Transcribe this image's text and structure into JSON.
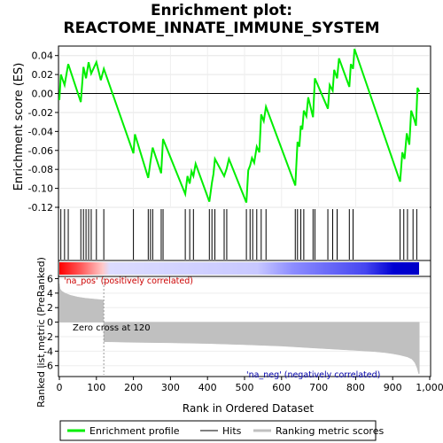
{
  "title_line1": "Enrichment plot:",
  "title_line2": "REACTOME_INNATE_IMMUNE_SYSTEM",
  "colors": {
    "es_line": "#00ee00",
    "hit": "#000000",
    "metric_fill": "#c0c0c0",
    "pos_label": "#cc0000",
    "neg_label": "#0000aa",
    "zero_line": "#888888"
  },
  "chart_data": [
    {
      "type": "line",
      "name": "enrichment-profile",
      "ylabel": "Enrichment score (ES)",
      "xlim": [
        0,
        1000
      ],
      "ylim": [
        -0.12,
        0.05
      ],
      "y_ticks": [
        {
          "v": 0.04,
          "label": "0.04"
        },
        {
          "v": 0.02,
          "label": "0.02"
        },
        {
          "v": 0.0,
          "label": "0.00"
        },
        {
          "v": -0.02,
          "label": "-0.02"
        },
        {
          "v": -0.04,
          "label": "-0.04"
        },
        {
          "v": -0.06,
          "label": "-0.06"
        },
        {
          "v": -0.08,
          "label": "-0.08"
        },
        {
          "v": -0.1,
          "label": "-0.10"
        },
        {
          "v": -0.12,
          "label": "-0.12"
        }
      ],
      "hits": [
        4,
        14,
        24,
        58,
        65,
        72,
        79,
        86,
        100,
        120,
        200,
        240,
        246,
        252,
        275,
        280,
        340,
        352,
        362,
        405,
        412,
        420,
        445,
        452,
        505,
        515,
        522,
        533,
        545,
        558,
        637,
        643,
        652,
        660,
        685,
        690,
        725,
        738,
        750,
        783,
        793,
        920,
        930,
        940,
        955,
        965
      ],
      "points": [
        [
          0,
          -0.007
        ],
        [
          4,
          0.02
        ],
        [
          14,
          0.009
        ],
        [
          24,
          0.031
        ],
        [
          58,
          -0.009
        ],
        [
          65,
          0.028
        ],
        [
          72,
          0.016
        ],
        [
          79,
          0.033
        ],
        [
          86,
          0.021
        ],
        [
          100,
          0.033
        ],
        [
          112,
          0.014
        ],
        [
          120,
          0.026
        ],
        [
          200,
          -0.063
        ],
        [
          204,
          -0.043
        ],
        [
          240,
          -0.089
        ],
        [
          246,
          -0.072
        ],
        [
          252,
          -0.057
        ],
        [
          275,
          -0.084
        ],
        [
          280,
          -0.048
        ],
        [
          340,
          -0.106
        ],
        [
          346,
          -0.087
        ],
        [
          352,
          -0.095
        ],
        [
          357,
          -0.082
        ],
        [
          362,
          -0.087
        ],
        [
          368,
          -0.074
        ],
        [
          405,
          -0.114
        ],
        [
          412,
          -0.094
        ],
        [
          416,
          -0.085
        ],
        [
          420,
          -0.069
        ],
        [
          445,
          -0.087
        ],
        [
          452,
          -0.079
        ],
        [
          458,
          -0.069
        ],
        [
          505,
          -0.115
        ],
        [
          510,
          -0.081
        ],
        [
          515,
          -0.076
        ],
        [
          520,
          -0.068
        ],
        [
          526,
          -0.073
        ],
        [
          533,
          -0.056
        ],
        [
          540,
          -0.062
        ],
        [
          545,
          -0.022
        ],
        [
          552,
          -0.029
        ],
        [
          558,
          -0.014
        ],
        [
          637,
          -0.097
        ],
        [
          643,
          -0.051
        ],
        [
          648,
          -0.056
        ],
        [
          652,
          -0.034
        ],
        [
          656,
          -0.038
        ],
        [
          660,
          -0.018
        ],
        [
          667,
          -0.024
        ],
        [
          672,
          -0.004
        ],
        [
          685,
          -0.025
        ],
        [
          690,
          0.016
        ],
        [
          725,
          -0.016
        ],
        [
          730,
          0.009
        ],
        [
          738,
          0.003
        ],
        [
          742,
          0.025
        ],
        [
          750,
          0.016
        ],
        [
          755,
          0.037
        ],
        [
          783,
          0.007
        ],
        [
          787,
          0.031
        ],
        [
          793,
          0.026
        ],
        [
          797,
          0.047
        ],
        [
          920,
          -0.093
        ],
        [
          926,
          -0.062
        ],
        [
          932,
          -0.069
        ],
        [
          938,
          -0.042
        ],
        [
          945,
          -0.054
        ],
        [
          950,
          -0.018
        ],
        [
          958,
          -0.027
        ],
        [
          963,
          -0.034
        ],
        [
          967,
          0.006
        ],
        [
          972,
          0.002
        ]
      ]
    },
    {
      "type": "area",
      "name": "ranked-list-metric",
      "ylabel": "Ranked list metric (PreRanked)",
      "xlabel": "Rank in Ordered Dataset",
      "xlim": [
        0,
        1000
      ],
      "ylim": [
        -7.5,
        6.3
      ],
      "y_ticks": [
        {
          "v": 6,
          "label": "6"
        },
        {
          "v": 4,
          "label": "4"
        },
        {
          "v": 2,
          "label": "2"
        },
        {
          "v": 0,
          "label": "0"
        },
        {
          "v": -2,
          "label": "-2"
        },
        {
          "v": -4,
          "label": "-4"
        },
        {
          "v": -6,
          "label": "-6"
        }
      ],
      "x_ticks": [
        {
          "v": 0,
          "label": "0"
        },
        {
          "v": 100,
          "label": "100"
        },
        {
          "v": 200,
          "label": "200"
        },
        {
          "v": 300,
          "label": "300"
        },
        {
          "v": 400,
          "label": "400"
        },
        {
          "v": 500,
          "label": "500"
        },
        {
          "v": 600,
          "label": "600"
        },
        {
          "v": 700,
          "label": "700"
        },
        {
          "v": 800,
          "label": "800"
        },
        {
          "v": 900,
          "label": "900"
        },
        {
          "v": 1000,
          "label": "1,000"
        }
      ],
      "points": [
        [
          0,
          5.3
        ],
        [
          2,
          4.6
        ],
        [
          6,
          4.3
        ],
        [
          15,
          4.0
        ],
        [
          30,
          3.7
        ],
        [
          50,
          3.45
        ],
        [
          70,
          3.3
        ],
        [
          90,
          3.2
        ],
        [
          110,
          3.1
        ],
        [
          119,
          3.05
        ],
        [
          120,
          -2.7
        ],
        [
          150,
          -2.72
        ],
        [
          200,
          -2.78
        ],
        [
          300,
          -2.85
        ],
        [
          400,
          -2.95
        ],
        [
          500,
          -3.1
        ],
        [
          600,
          -3.3
        ],
        [
          700,
          -3.6
        ],
        [
          800,
          -3.9
        ],
        [
          850,
          -4.05
        ],
        [
          880,
          -4.2
        ],
        [
          900,
          -4.35
        ],
        [
          920,
          -4.55
        ],
        [
          940,
          -4.8
        ],
        [
          952,
          -5.1
        ],
        [
          960,
          -5.6
        ],
        [
          966,
          -6.3
        ],
        [
          970,
          -7.1
        ],
        [
          972,
          -7.1
        ]
      ],
      "zero_cross_rank": 120,
      "zero_cross_label": "Zero cross at 120",
      "pos_label": "'na_pos' (positively correlated)",
      "neg_label": "'na_neg' (negatively correlated)",
      "list_size": 972
    }
  ],
  "legend": [
    {
      "label": "Enrichment profile"
    },
    {
      "label": "Hits"
    },
    {
      "label": "Ranking metric scores"
    }
  ]
}
